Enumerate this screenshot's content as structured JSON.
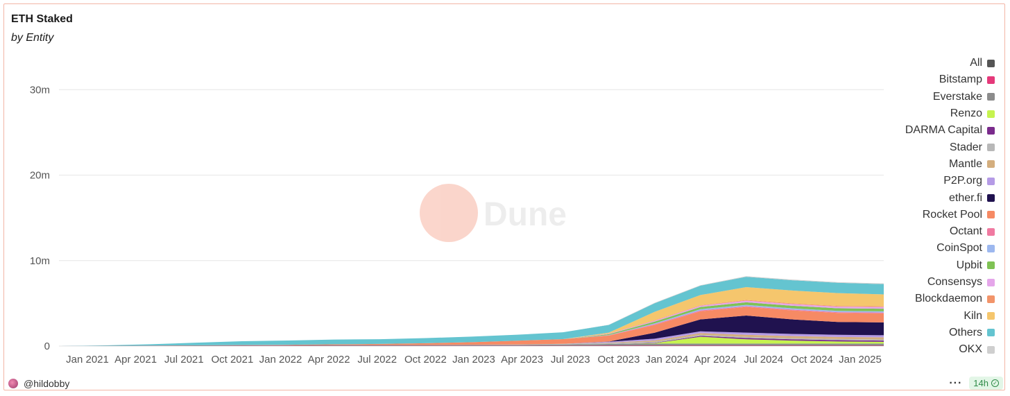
{
  "chart_data": {
    "type": "area",
    "title": "ETH Staked",
    "subtitle": "by Entity",
    "y_tick_labels": [
      "0",
      "10m",
      "20m",
      "30m"
    ],
    "y_ticks": [
      0,
      10000000,
      20000000,
      30000000
    ],
    "ylim": [
      0,
      34000000
    ],
    "x_tick_labels": [
      "Jan 2021",
      "Apr 2021",
      "Jul 2021",
      "Oct 2021",
      "Jan 2022",
      "Apr 2022",
      "Jul 2022",
      "Oct 2022",
      "Jan 2023",
      "Apr 2023",
      "Jul 2023",
      "Oct 2023",
      "Jan 2024",
      "Apr 2024",
      "Jul 2024",
      "Oct 2024",
      "Jan 2025"
    ],
    "x": [
      "2020-11",
      "2021-01",
      "2021-04",
      "2021-07",
      "2021-10",
      "2022-01",
      "2022-04",
      "2022-07",
      "2022-10",
      "2023-01",
      "2023-04",
      "2023-07",
      "2023-10",
      "2024-01",
      "2024-04",
      "2024-07",
      "2024-10",
      "2025-01",
      "2025-02"
    ],
    "grid": true,
    "legend_position": "right",
    "watermark": "Dune",
    "series": [
      {
        "name": "Bitstamp",
        "color": "#e5397a",
        "values": [
          0,
          10000,
          20000,
          25000,
          30000,
          30000,
          30000,
          30000,
          30000,
          30000,
          30000,
          30000,
          40000,
          40000,
          40000,
          40000,
          40000,
          40000,
          40000
        ]
      },
      {
        "name": "Everstake",
        "color": "#8c8c8c",
        "values": [
          0,
          20000,
          40000,
          60000,
          70000,
          80000,
          100000,
          100000,
          100000,
          110000,
          110000,
          150000,
          200000,
          250000,
          250000,
          250000,
          250000,
          250000,
          250000
        ]
      },
      {
        "name": "Renzo",
        "color": "#c6f34f",
        "values": [
          0,
          0,
          0,
          0,
          0,
          0,
          0,
          0,
          0,
          0,
          0,
          0,
          0,
          50000,
          800000,
          500000,
          350000,
          250000,
          200000
        ]
      },
      {
        "name": "DARMA Capital",
        "color": "#7a2b8c",
        "values": [
          0,
          0,
          0,
          0,
          0,
          0,
          0,
          0,
          0,
          0,
          0,
          0,
          0,
          50000,
          100000,
          150000,
          150000,
          150000,
          150000
        ]
      },
      {
        "name": "Stader",
        "color": "#b8b8b8",
        "values": [
          0,
          0,
          0,
          0,
          0,
          0,
          0,
          0,
          0,
          20000,
          40000,
          80000,
          120000,
          120000,
          130000,
          130000,
          130000,
          130000,
          130000
        ]
      },
      {
        "name": "Mantle",
        "color": "#d4ae7e",
        "values": [
          0,
          0,
          0,
          0,
          0,
          0,
          0,
          0,
          0,
          0,
          0,
          0,
          50000,
          150000,
          200000,
          250000,
          250000,
          250000,
          250000
        ]
      },
      {
        "name": "P2P.org",
        "color": "#b59be6",
        "values": [
          0,
          0,
          0,
          0,
          0,
          0,
          0,
          0,
          0,
          0,
          0,
          0,
          100000,
          200000,
          200000,
          250000,
          250000,
          250000,
          250000
        ]
      },
      {
        "name": "ether.fi",
        "color": "#20124f",
        "values": [
          0,
          0,
          0,
          0,
          0,
          0,
          0,
          0,
          0,
          0,
          0,
          0,
          20000,
          700000,
          1400000,
          2000000,
          1700000,
          1500000,
          1500000
        ]
      },
      {
        "name": "Rocket Pool",
        "color": "#f68a64",
        "values": [
          0,
          0,
          0,
          10000,
          20000,
          40000,
          80000,
          120000,
          200000,
          300000,
          450000,
          550000,
          700000,
          900000,
          950000,
          1000000,
          1050000,
          1050000,
          1050000
        ]
      },
      {
        "name": "Octant",
        "color": "#f07aa1",
        "values": [
          0,
          0,
          0,
          0,
          0,
          0,
          0,
          0,
          0,
          0,
          0,
          0,
          30000,
          100000,
          100000,
          100000,
          100000,
          100000,
          100000
        ]
      },
      {
        "name": "CoinSpot",
        "color": "#9db8ef",
        "values": [
          0,
          0,
          0,
          0,
          0,
          0,
          0,
          0,
          0,
          0,
          0,
          0,
          30000,
          100000,
          150000,
          150000,
          150000,
          150000,
          150000
        ]
      },
      {
        "name": "Upbit",
        "color": "#7fc254",
        "values": [
          0,
          0,
          0,
          0,
          0,
          0,
          0,
          0,
          0,
          0,
          0,
          0,
          100000,
          200000,
          250000,
          300000,
          300000,
          300000,
          300000
        ]
      },
      {
        "name": "Consensys",
        "color": "#e5a6ea",
        "values": [
          0,
          0,
          0,
          0,
          0,
          0,
          0,
          0,
          0,
          0,
          0,
          0,
          50000,
          100000,
          150000,
          200000,
          200000,
          200000,
          200000
        ]
      },
      {
        "name": "Blockdaemon",
        "color": "#f2946a",
        "values": [
          0,
          0,
          0,
          0,
          0,
          0,
          0,
          0,
          0,
          0,
          0,
          0,
          30000,
          50000,
          50000,
          80000,
          80000,
          80000,
          80000
        ]
      },
      {
        "name": "Kiln",
        "color": "#f5c66d",
        "values": [
          0,
          0,
          0,
          0,
          0,
          0,
          0,
          0,
          0,
          0,
          0,
          0,
          100000,
          1000000,
          1200000,
          1500000,
          1500000,
          1500000,
          1400000
        ]
      },
      {
        "name": "Others",
        "color": "#64c4d0",
        "values": [
          0,
          50000,
          150000,
          300000,
          450000,
          500000,
          550000,
          550000,
          600000,
          650000,
          700000,
          800000,
          900000,
          1000000,
          1100000,
          1200000,
          1200000,
          1200000,
          1200000
        ]
      },
      {
        "name": "OKX",
        "color": "#cfcfcf",
        "values": [
          0,
          0,
          0,
          0,
          0,
          0,
          0,
          0,
          0,
          0,
          0,
          0,
          30000,
          50000,
          50000,
          80000,
          80000,
          80000,
          80000
        ]
      }
    ]
  },
  "footer": {
    "author": "@hildobby",
    "more_label": "···",
    "refresh_label": "14h"
  }
}
